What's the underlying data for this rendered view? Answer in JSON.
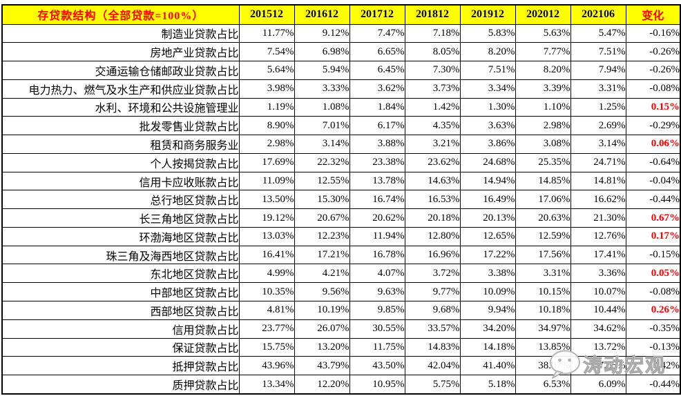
{
  "chart_data": {
    "type": "table",
    "title": "存贷款结构（全部贷款=100%）",
    "year_columns": [
      "201512",
      "201612",
      "201712",
      "201812",
      "201912",
      "202012",
      "202106"
    ],
    "change_column": "变化",
    "rows": [
      {
        "label": "制造业贷款占比",
        "values": [
          "11.77%",
          "9.12%",
          "7.47%",
          "7.18%",
          "5.83%",
          "5.63%",
          "5.47%"
        ],
        "change": "-0.16%",
        "change_positive": false
      },
      {
        "label": "房地产业贷款占比",
        "values": [
          "7.54%",
          "6.98%",
          "6.65%",
          "8.05%",
          "8.20%",
          "7.77%",
          "7.51%"
        ],
        "change": "-0.26%",
        "change_positive": false
      },
      {
        "label": "交通运输仓储邮政业贷款占比",
        "values": [
          "5.64%",
          "5.94%",
          "6.45%",
          "7.30%",
          "7.51%",
          "8.20%",
          "7.94%"
        ],
        "change": "-0.26%",
        "change_positive": false
      },
      {
        "label": "电力热力、燃气及水生产和供应业贷款占比",
        "values": [
          "3.98%",
          "3.33%",
          "3.62%",
          "3.73%",
          "3.34%",
          "3.39%",
          "3.31%"
        ],
        "change": "-0.08%",
        "change_positive": false
      },
      {
        "label": "水利、环境和公共设施管理业",
        "values": [
          "1.19%",
          "1.08%",
          "1.84%",
          "1.42%",
          "1.30%",
          "1.10%",
          "1.25%"
        ],
        "change": "0.15%",
        "change_positive": true
      },
      {
        "label": "批发零售业贷款占比",
        "values": [
          "8.90%",
          "7.01%",
          "6.17%",
          "4.35%",
          "3.63%",
          "2.98%",
          "2.69%"
        ],
        "change": "-0.29%",
        "change_positive": false
      },
      {
        "label": "租赁和商务服务业",
        "values": [
          "2.98%",
          "3.14%",
          "3.88%",
          "3.21%",
          "3.86%",
          "3.08%",
          "3.14%"
        ],
        "change": "0.06%",
        "change_positive": true
      },
      {
        "label": "个人按揭贷款占比",
        "values": [
          "17.69%",
          "22.32%",
          "23.38%",
          "23.62%",
          "24.68%",
          "25.35%",
          "24.71%"
        ],
        "change": "-0.64%",
        "change_positive": false
      },
      {
        "label": "信用卡应收账款占比",
        "values": [
          "11.09%",
          "12.55%",
          "13.78%",
          "14.63%",
          "14.94%",
          "14.85%",
          "14.81%"
        ],
        "change": "-0.04%",
        "change_positive": false
      },
      {
        "label": "总行地区贷款占比",
        "values": [
          "13.50%",
          "15.30%",
          "16.74%",
          "16.53%",
          "16.49%",
          "17.06%",
          "16.62%"
        ],
        "change": "-0.44%",
        "change_positive": false
      },
      {
        "label": "长三角地区贷款占比",
        "values": [
          "19.12%",
          "20.67%",
          "20.62%",
          "20.18%",
          "20.13%",
          "20.63%",
          "21.30%"
        ],
        "change": "0.67%",
        "change_positive": true
      },
      {
        "label": "环渤海地区贷款占比",
        "values": [
          "13.03%",
          "12.23%",
          "11.94%",
          "12.80%",
          "12.65%",
          "12.59%",
          "12.76%"
        ],
        "change": "0.17%",
        "change_positive": true
      },
      {
        "label": "珠三角及海西地区贷款占比",
        "values": [
          "16.41%",
          "17.21%",
          "16.78%",
          "16.96%",
          "17.22%",
          "17.56%",
          "17.41%"
        ],
        "change": "-0.15%",
        "change_positive": false
      },
      {
        "label": "东北地区贷款占比",
        "values": [
          "4.99%",
          "4.21%",
          "4.07%",
          "3.72%",
          "3.38%",
          "3.31%",
          "3.36%"
        ],
        "change": "0.05%",
        "change_positive": true
      },
      {
        "label": "中部地区贷款占比",
        "values": [
          "10.35%",
          "9.56%",
          "9.63%",
          "9.77%",
          "10.09%",
          "10.15%",
          "10.07%"
        ],
        "change": "-0.08%",
        "change_positive": false
      },
      {
        "label": "西部地区贷款占比",
        "values": [
          "4.81%",
          "10.19%",
          "9.85%",
          "9.68%",
          "9.94%",
          "10.18%",
          "10.44%"
        ],
        "change": "0.26%",
        "change_positive": true
      },
      {
        "label": "信用贷款占比",
        "values": [
          "23.77%",
          "26.07%",
          "30.55%",
          "33.57%",
          "34.20%",
          "34.97%",
          "34.62%"
        ],
        "change": "-0.35%",
        "change_positive": false
      },
      {
        "label": "保证贷款占比",
        "values": [
          "15.75%",
          "13.20%",
          "11.75%",
          "14.83%",
          "14.18%",
          "13.85%",
          "13.72%"
        ],
        "change": "-0.13%",
        "change_positive": false
      },
      {
        "label": "抵押贷款占比",
        "values": [
          "43.96%",
          "43.79%",
          "43.50%",
          "42.04%",
          "41.40%",
          "38.07%",
          "37.65%"
        ],
        "change": "-0.42%",
        "change_positive": false
      },
      {
        "label": "质押贷款占比",
        "values": [
          "13.34%",
          "12.20%",
          "10.95%",
          "5.75%",
          "5.18%",
          "6.53%",
          "6.09%"
        ],
        "change": "-0.44%",
        "change_positive": false
      }
    ]
  },
  "watermark": {
    "text": "涛动宏观",
    "icon": "chat-bubble-icon"
  },
  "colors": {
    "header_bg": "#FFFF00",
    "header_title_text": "#FF0000",
    "year_header_text": "#000000",
    "positive_change_text": "#FF0000",
    "negative_change_text": "#000000",
    "border": "#000000",
    "background": "#FFFFFF"
  }
}
